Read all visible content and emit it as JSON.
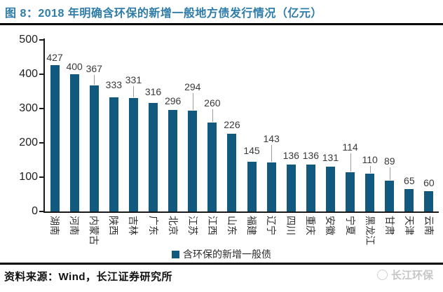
{
  "header": {
    "title": "图 8：2018 年明确含环保的新增一般地方债发行情况（亿元）"
  },
  "footer": {
    "source": "资料来源：Wind，长江证券研究所",
    "logo_text": "长江环保"
  },
  "colors": {
    "bar": "#12597F",
    "title_text": "#2E7CA8",
    "axis": "#1a1a1a",
    "leader_line": "#9c9c9c",
    "logo_gray": "#c6c6c6"
  },
  "chart_data": {
    "type": "bar",
    "title": "2018 年明确含环保的新增一般地方债发行情况（亿元）",
    "legend": "含环保的新增一般债",
    "legend_position": "bottom",
    "grid": false,
    "ylim": [
      0,
      500
    ],
    "yticks": [
      0,
      100,
      200,
      300,
      400,
      500
    ],
    "categories": [
      "湖南",
      "河南",
      "内蒙古",
      "陕西",
      "吉林",
      "广东",
      "北京",
      "江苏",
      "江西",
      "山东",
      "福建",
      "辽宁",
      "四川",
      "重庆",
      "安徽",
      "宁夏",
      "黑龙江",
      "甘肃",
      "天津",
      "云南"
    ],
    "values": [
      427,
      400,
      367,
      333,
      331,
      316,
      296,
      294,
      260,
      226,
      145,
      143,
      136,
      136,
      131,
      114,
      110,
      89,
      65,
      60
    ],
    "label_raise": [
      3,
      3,
      16,
      10,
      18,
      8,
      5,
      26,
      20,
      5,
      8,
      26,
      5,
      5,
      5,
      28,
      12,
      20,
      4,
      4
    ],
    "leader_lines": [
      false,
      false,
      true,
      false,
      true,
      false,
      false,
      true,
      true,
      false,
      false,
      true,
      false,
      false,
      false,
      true,
      true,
      true,
      false,
      false
    ]
  }
}
